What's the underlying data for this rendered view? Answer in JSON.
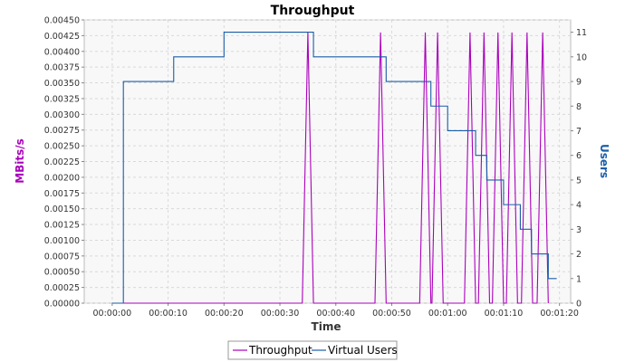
{
  "chart_data": {
    "type": "line",
    "title": "Throughput",
    "xlabel": "Time",
    "ylabel_left": "MBits/s",
    "ylabel_right": "Users",
    "x_unit": "seconds",
    "xlim": [
      -5,
      82
    ],
    "ylim_left": [
      0,
      0.0045
    ],
    "ylim_right": [
      0,
      11.5
    ],
    "x_ticks": [
      "00:00:00",
      "00:00:10",
      "00:00:20",
      "00:00:30",
      "00:00:40",
      "00:00:50",
      "00:01:00",
      "00:01:10",
      "00:01:20"
    ],
    "y_ticks_left": [
      "0.00000",
      "0.00025",
      "0.00050",
      "0.00075",
      "0.00100",
      "0.00125",
      "0.00150",
      "0.00175",
      "0.00200",
      "0.00225",
      "0.00250",
      "0.00275",
      "0.00300",
      "0.00325",
      "0.00350",
      "0.00375",
      "0.00400",
      "0.00425",
      "0.00450"
    ],
    "y_ticks_right": [
      "0",
      "1",
      "2",
      "3",
      "4",
      "5",
      "6",
      "7",
      "8",
      "9",
      "10",
      "11"
    ],
    "grid": true,
    "legend_position": "bottom",
    "series": [
      {
        "name": "Throughput",
        "axis": "left",
        "color": "#aa00bb",
        "points": [
          [
            0,
            0
          ],
          [
            34,
            0
          ],
          [
            35,
            0.0043
          ],
          [
            36,
            0
          ],
          [
            47,
            0
          ],
          [
            48,
            0.0043
          ],
          [
            49,
            0
          ],
          [
            55,
            0
          ],
          [
            56,
            0.0043
          ],
          [
            57,
            0
          ],
          [
            57.2,
            0
          ],
          [
            58.2,
            0.0043
          ],
          [
            59.2,
            0
          ],
          [
            63,
            0
          ],
          [
            64,
            0.0043
          ],
          [
            65,
            0
          ],
          [
            65.5,
            0
          ],
          [
            66.5,
            0.0043
          ],
          [
            67.5,
            0
          ],
          [
            68,
            0
          ],
          [
            69,
            0.0043
          ],
          [
            70,
            0
          ],
          [
            70.5,
            0
          ],
          [
            71.5,
            0.0043
          ],
          [
            72.5,
            0
          ],
          [
            73.2,
            0
          ],
          [
            74.2,
            0.0043
          ],
          [
            75.2,
            0
          ],
          [
            76,
            0
          ],
          [
            77,
            0.0043
          ],
          [
            78,
            0
          ]
        ]
      },
      {
        "name": "Virtual Users",
        "axis": "right",
        "color": "#1a5ea8",
        "points": [
          [
            0,
            0
          ],
          [
            2,
            0
          ],
          [
            2,
            9
          ],
          [
            11,
            9
          ],
          [
            11,
            10
          ],
          [
            20,
            10
          ],
          [
            20,
            11
          ],
          [
            36,
            11
          ],
          [
            36,
            10
          ],
          [
            49,
            10
          ],
          [
            49,
            9
          ],
          [
            57,
            9
          ],
          [
            57,
            8
          ],
          [
            60,
            8
          ],
          [
            60,
            7
          ],
          [
            65,
            7
          ],
          [
            65,
            6
          ],
          [
            67,
            6
          ],
          [
            67,
            5
          ],
          [
            70,
            5
          ],
          [
            70,
            4
          ],
          [
            73,
            4
          ],
          [
            73,
            3
          ],
          [
            75,
            3
          ],
          [
            75,
            2
          ],
          [
            78,
            2
          ],
          [
            78,
            1
          ],
          [
            79.5,
            1
          ]
        ]
      }
    ]
  }
}
